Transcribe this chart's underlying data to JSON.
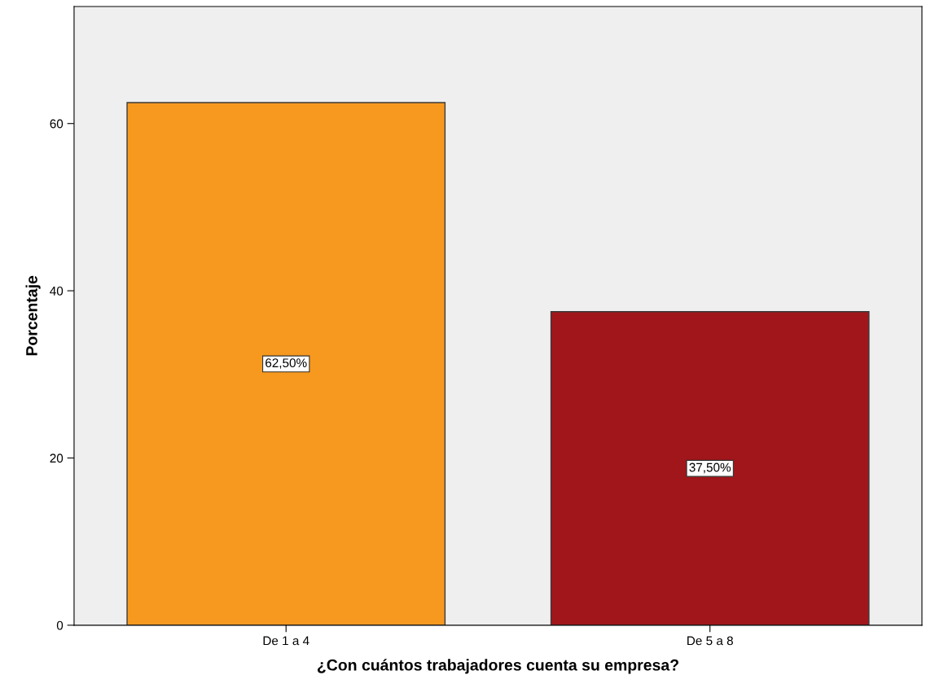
{
  "chart_data": {
    "type": "bar",
    "xlabel": "¿Con cuántos trabajadores cuenta su empresa?",
    "ylabel": "Porcentaje",
    "categories": [
      "De 1 a 4",
      "De 5 a 8"
    ],
    "values": [
      62.5,
      37.5
    ],
    "colors": [
      "#f7991f",
      "#a0161a"
    ],
    "value_labels": [
      "62,50%",
      "37,50%"
    ],
    "ylim": [
      0,
      74
    ],
    "yticks": [
      0,
      20,
      40,
      60
    ],
    "grid": false,
    "legend": false
  }
}
